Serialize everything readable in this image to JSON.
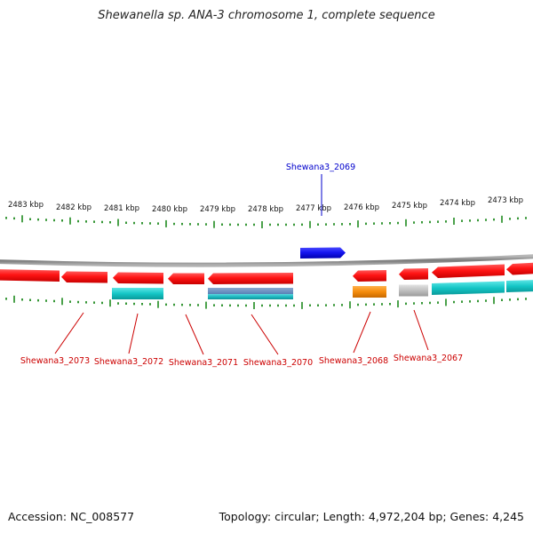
{
  "title": "Shewanella sp. ANA-3 chromosome 1, complete sequence",
  "accession_label": "Accession: NC_008577",
  "stats_label": "Topology: circular; Length: 4,972,204 bp; Genes: 4,245",
  "colors": {
    "tick": "#1f8a1f",
    "tick_label": "#111111",
    "backbone": "#8a8a8a",
    "forward_gene": "#1a1aee",
    "reverse_gene": "#ee1111",
    "cds_teal": "#16c8c8",
    "cds_steel": "#5b84b8",
    "cds_orange": "#f58c0c",
    "cds_gray": "#bcbcbc",
    "label_forward": "#0000cc",
    "label_reverse": "#cc0000"
  },
  "scale": {
    "unit": "kbp",
    "ticks": [
      "2483 kbp",
      "2482 kbp",
      "2481 kbp",
      "2480 kbp",
      "2479 kbp",
      "2478 kbp",
      "2477 kbp",
      "2476 kbp",
      "2475 kbp",
      "2474 kbp",
      "2473 kbp"
    ]
  },
  "genes": [
    {
      "name": "Shewana3_2069",
      "strand": "+",
      "color": "forward_gene",
      "cds": null
    },
    {
      "name": "Shewana3_2073",
      "strand": "-",
      "color": "reverse_gene",
      "cds": null
    },
    {
      "name": "Shewana3_2072",
      "strand": "-",
      "color": "reverse_gene",
      "cds": "cds_teal"
    },
    {
      "name": "Shewana3_2071",
      "strand": "-",
      "color": "reverse_gene",
      "cds": null
    },
    {
      "name": "Shewana3_2070",
      "strand": "-",
      "color": "reverse_gene",
      "cds": "cds_steel"
    },
    {
      "name": "Shewana3_2068",
      "strand": "-",
      "color": "reverse_gene",
      "cds": "cds_orange"
    },
    {
      "name": "Shewana3_2067",
      "strand": "-",
      "color": "reverse_gene",
      "cds": "cds_gray"
    },
    {
      "name": "",
      "strand": "-",
      "color": "reverse_gene",
      "cds": "cds_teal"
    },
    {
      "name": "",
      "strand": "-",
      "color": "reverse_gene",
      "cds": null
    }
  ]
}
